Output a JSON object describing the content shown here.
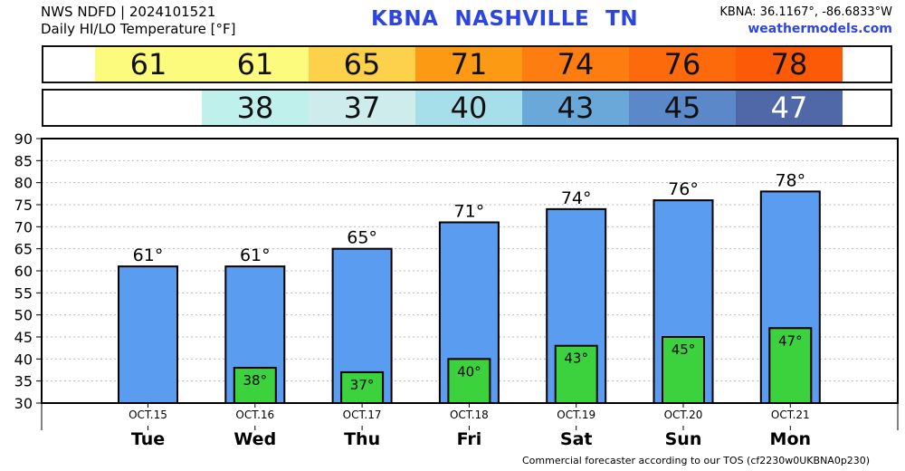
{
  "header": {
    "line1": "NWS NDFD | 2024101521",
    "line2": "Daily HI/LO Temperature [°F]",
    "station": "KBNA",
    "city": "NASHVILLE",
    "state": "TN",
    "coords": "KBNA: 36.1167°, -86.6833°W",
    "site": "weathermodels.com"
  },
  "hi_row": [
    {
      "value": "61",
      "color": "#fdfb7e"
    },
    {
      "value": "61",
      "color": "#fdfb7e"
    },
    {
      "value": "65",
      "color": "#fdd24a"
    },
    {
      "value": "71",
      "color": "#fd9a14"
    },
    {
      "value": "74",
      "color": "#fd7d10"
    },
    {
      "value": "76",
      "color": "#fd6a0c"
    },
    {
      "value": "78",
      "color": "#fc5a06"
    }
  ],
  "lo_row": [
    {
      "value": "",
      "color": "#ffffff"
    },
    {
      "value": "38",
      "color": "#bff0ec"
    },
    {
      "value": "37",
      "color": "#cdeceb"
    },
    {
      "value": "40",
      "color": "#a6dfe9"
    },
    {
      "value": "43",
      "color": "#6aa8d9"
    },
    {
      "value": "45",
      "color": "#5a88c8"
    },
    {
      "value": "47",
      "color": "#5068a8"
    }
  ],
  "chart_data": {
    "type": "bar",
    "categories": [
      "OCT.15",
      "OCT.16",
      "OCT.17",
      "OCT.18",
      "OCT.19",
      "OCT.20",
      "OCT.21"
    ],
    "days": [
      "Tue",
      "Wed",
      "Thu",
      "Fri",
      "Sat",
      "Sun",
      "Mon"
    ],
    "series": [
      {
        "values": [
          61,
          61,
          65,
          71,
          74,
          76,
          78
        ],
        "labels": [
          "61°",
          "61°",
          "65°",
          "71°",
          "74°",
          "76°",
          "78°"
        ],
        "color": "#5a9cf0"
      },
      {
        "values": [
          null,
          38,
          37,
          40,
          43,
          45,
          47
        ],
        "labels": [
          "",
          "38°",
          "37°",
          "40°",
          "43°",
          "45°",
          "47°"
        ],
        "color": "#3bd23e"
      }
    ],
    "ylim": [
      30,
      90
    ],
    "yticks": [
      30,
      35,
      40,
      45,
      50,
      55,
      60,
      65,
      70,
      75,
      80,
      85,
      90
    ],
    "grid": true
  },
  "footer": "Commercial forecaster according to our TOS (cf2230w0UKBNA0p230)"
}
